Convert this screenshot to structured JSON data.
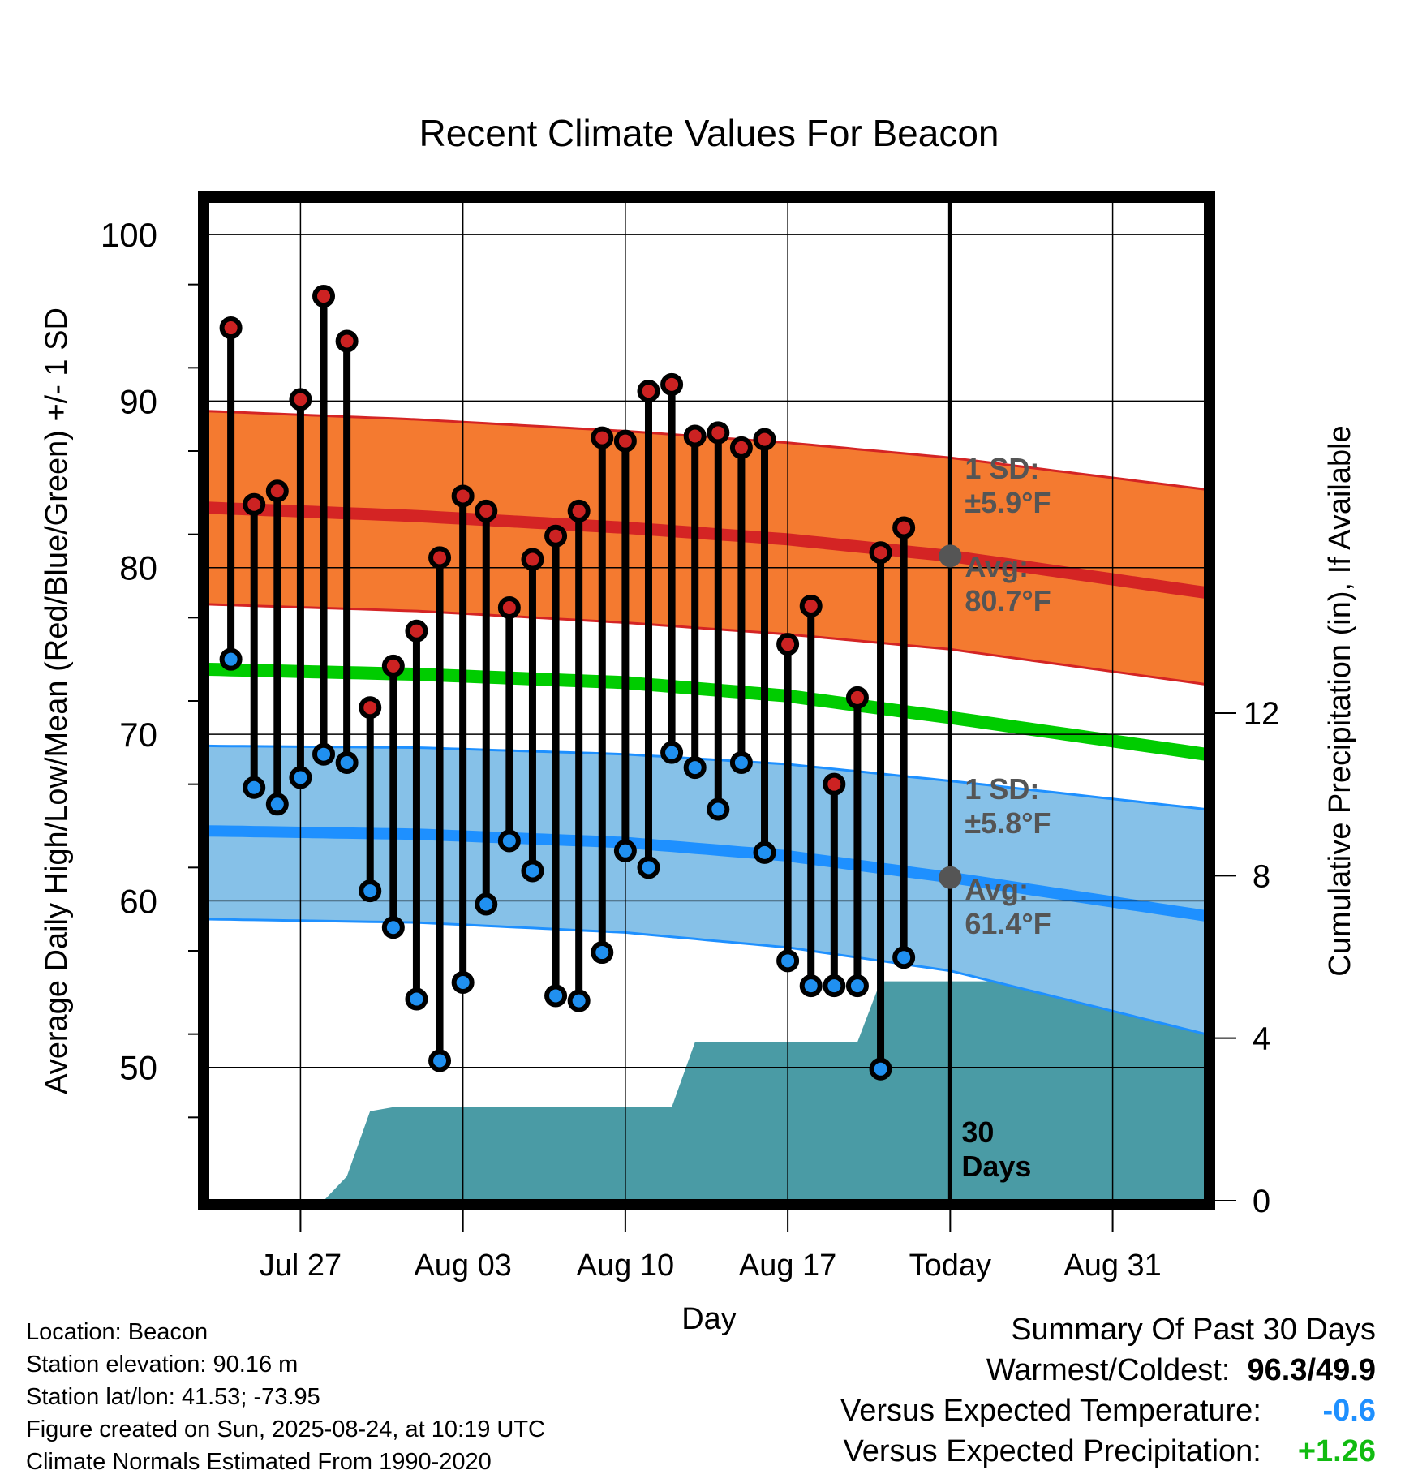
{
  "title": "Recent Climate Values For Beacon",
  "ylabel_left": "Average Daily High/Low/Mean (Red/Blue/Green) +/- 1 SD",
  "ylabel_right": "Cumulative Precipitation (in), If Available",
  "xlabel": "Day",
  "today_label": "30\nDays",
  "annotations": {
    "high_sd": "1 SD:\n±5.9°F",
    "high_avg": "Avg:\n80.7°F",
    "low_sd": "1 SD:\n±5.8°F",
    "low_avg": "Avg:\n61.4°F"
  },
  "colors": {
    "high_band": "#f47a30",
    "high_line": "#d42424",
    "low_band": "#86c1e8",
    "low_line": "#1e90ff",
    "mean_line": "#00cc00",
    "precip": "#4a9ba5",
    "avg_marker": "#555555",
    "high_point": "#cc2222",
    "low_point": "#2090f0"
  },
  "chart_data": {
    "type": "line",
    "x_ticks": [
      "Jul 27",
      "Aug 03",
      "Aug 10",
      "Aug 17",
      "Today",
      "Aug 31"
    ],
    "x_tick_dates": [
      "2025-07-27",
      "2025-08-03",
      "2025-08-10",
      "2025-08-17",
      "2025-08-24",
      "2025-08-31"
    ],
    "xlim": [
      "2025-07-23",
      "2025-09-04"
    ],
    "today": "2025-08-24",
    "y_left": {
      "ticks": [
        50,
        60,
        70,
        80,
        90,
        100
      ],
      "range": [
        42,
        102
      ]
    },
    "y_right": {
      "ticks": [
        0,
        4,
        8,
        12
      ],
      "range": [
        0,
        24.6
      ]
    },
    "grid": true,
    "daily_observed": {
      "dates": [
        "2025-07-24",
        "2025-07-25",
        "2025-07-26",
        "2025-07-27",
        "2025-07-28",
        "2025-07-29",
        "2025-07-30",
        "2025-07-31",
        "2025-08-01",
        "2025-08-02",
        "2025-08-03",
        "2025-08-04",
        "2025-08-05",
        "2025-08-06",
        "2025-08-07",
        "2025-08-08",
        "2025-08-09",
        "2025-08-10",
        "2025-08-11",
        "2025-08-12",
        "2025-08-13",
        "2025-08-14",
        "2025-08-15",
        "2025-08-16",
        "2025-08-17",
        "2025-08-18",
        "2025-08-19",
        "2025-08-20",
        "2025-08-21",
        "2025-08-22",
        "2025-08-23"
      ],
      "high": [
        94.4,
        83.8,
        84.6,
        90.1,
        96.3,
        93.6,
        71.6,
        74.1,
        76.2,
        80.6,
        84.3,
        83.4,
        77.6,
        80.5,
        81.9,
        83.4,
        87.8,
        87.6,
        90.6,
        91.0,
        87.9,
        88.1,
        87.2,
        87.7,
        75.4,
        77.7,
        67.0,
        72.2,
        80.9,
        82.4,
        null
      ],
      "low": [
        74.5,
        66.8,
        65.8,
        67.4,
        68.8,
        68.3,
        60.6,
        58.4,
        54.1,
        50.4,
        55.1,
        59.8,
        63.6,
        61.8,
        54.3,
        54.0,
        56.9,
        63.0,
        62.0,
        68.9,
        68.0,
        65.5,
        68.3,
        62.9,
        56.4,
        54.9,
        54.9,
        54.9,
        49.9,
        56.6,
        null
      ]
    },
    "normals": {
      "dates": [
        "2025-07-23",
        "2025-08-01",
        "2025-08-10",
        "2025-08-17",
        "2025-08-24",
        "2025-09-04"
      ],
      "high_avg": [
        83.6,
        83.1,
        82.4,
        81.7,
        80.7,
        78.5
      ],
      "high_upper": [
        89.4,
        88.9,
        88.2,
        87.5,
        86.6,
        84.7
      ],
      "high_lower": [
        77.8,
        77.4,
        76.7,
        76.0,
        75.1,
        73.0
      ],
      "low_avg": [
        64.2,
        64.0,
        63.5,
        62.7,
        61.4,
        59.1
      ],
      "low_upper": [
        69.3,
        69.2,
        68.8,
        68.2,
        67.2,
        65.5
      ],
      "low_lower": [
        58.9,
        58.7,
        58.1,
        57.2,
        55.8,
        52.0
      ],
      "mean": [
        73.9,
        73.6,
        73.1,
        72.3,
        71.0,
        68.8
      ]
    },
    "cumulative_precip": {
      "dates": [
        "2025-07-28",
        "2025-07-29",
        "2025-07-30",
        "2025-07-31",
        "2025-08-02",
        "2025-08-12",
        "2025-08-13",
        "2025-08-20",
        "2025-08-21",
        "2025-09-04"
      ],
      "values": [
        0,
        0.6,
        2.2,
        2.3,
        2.3,
        2.3,
        3.9,
        3.9,
        5.4,
        5.4
      ]
    }
  },
  "footer": {
    "location": "Location: Beacon",
    "elevation": "Station elevation: 90.16 m",
    "latlon": "Station lat/lon: 41.53; -73.95",
    "created": "Figure created on Sun, 2025-08-24, at 10:19 UTC",
    "normals": "Climate Normals Estimated From 1990-2020"
  },
  "summary": {
    "heading": "Summary Of Past 30 Days",
    "warm_cold_label": "Warmest/Coldest:",
    "warm_cold_value": "96.3/49.9",
    "temp_label": "Versus Expected Temperature:",
    "temp_value": "-0.6",
    "temp_color": "#1e90ff",
    "precip_label": "Versus Expected Precipitation:",
    "precip_value": "+1.26",
    "precip_color": "#11bb11"
  }
}
